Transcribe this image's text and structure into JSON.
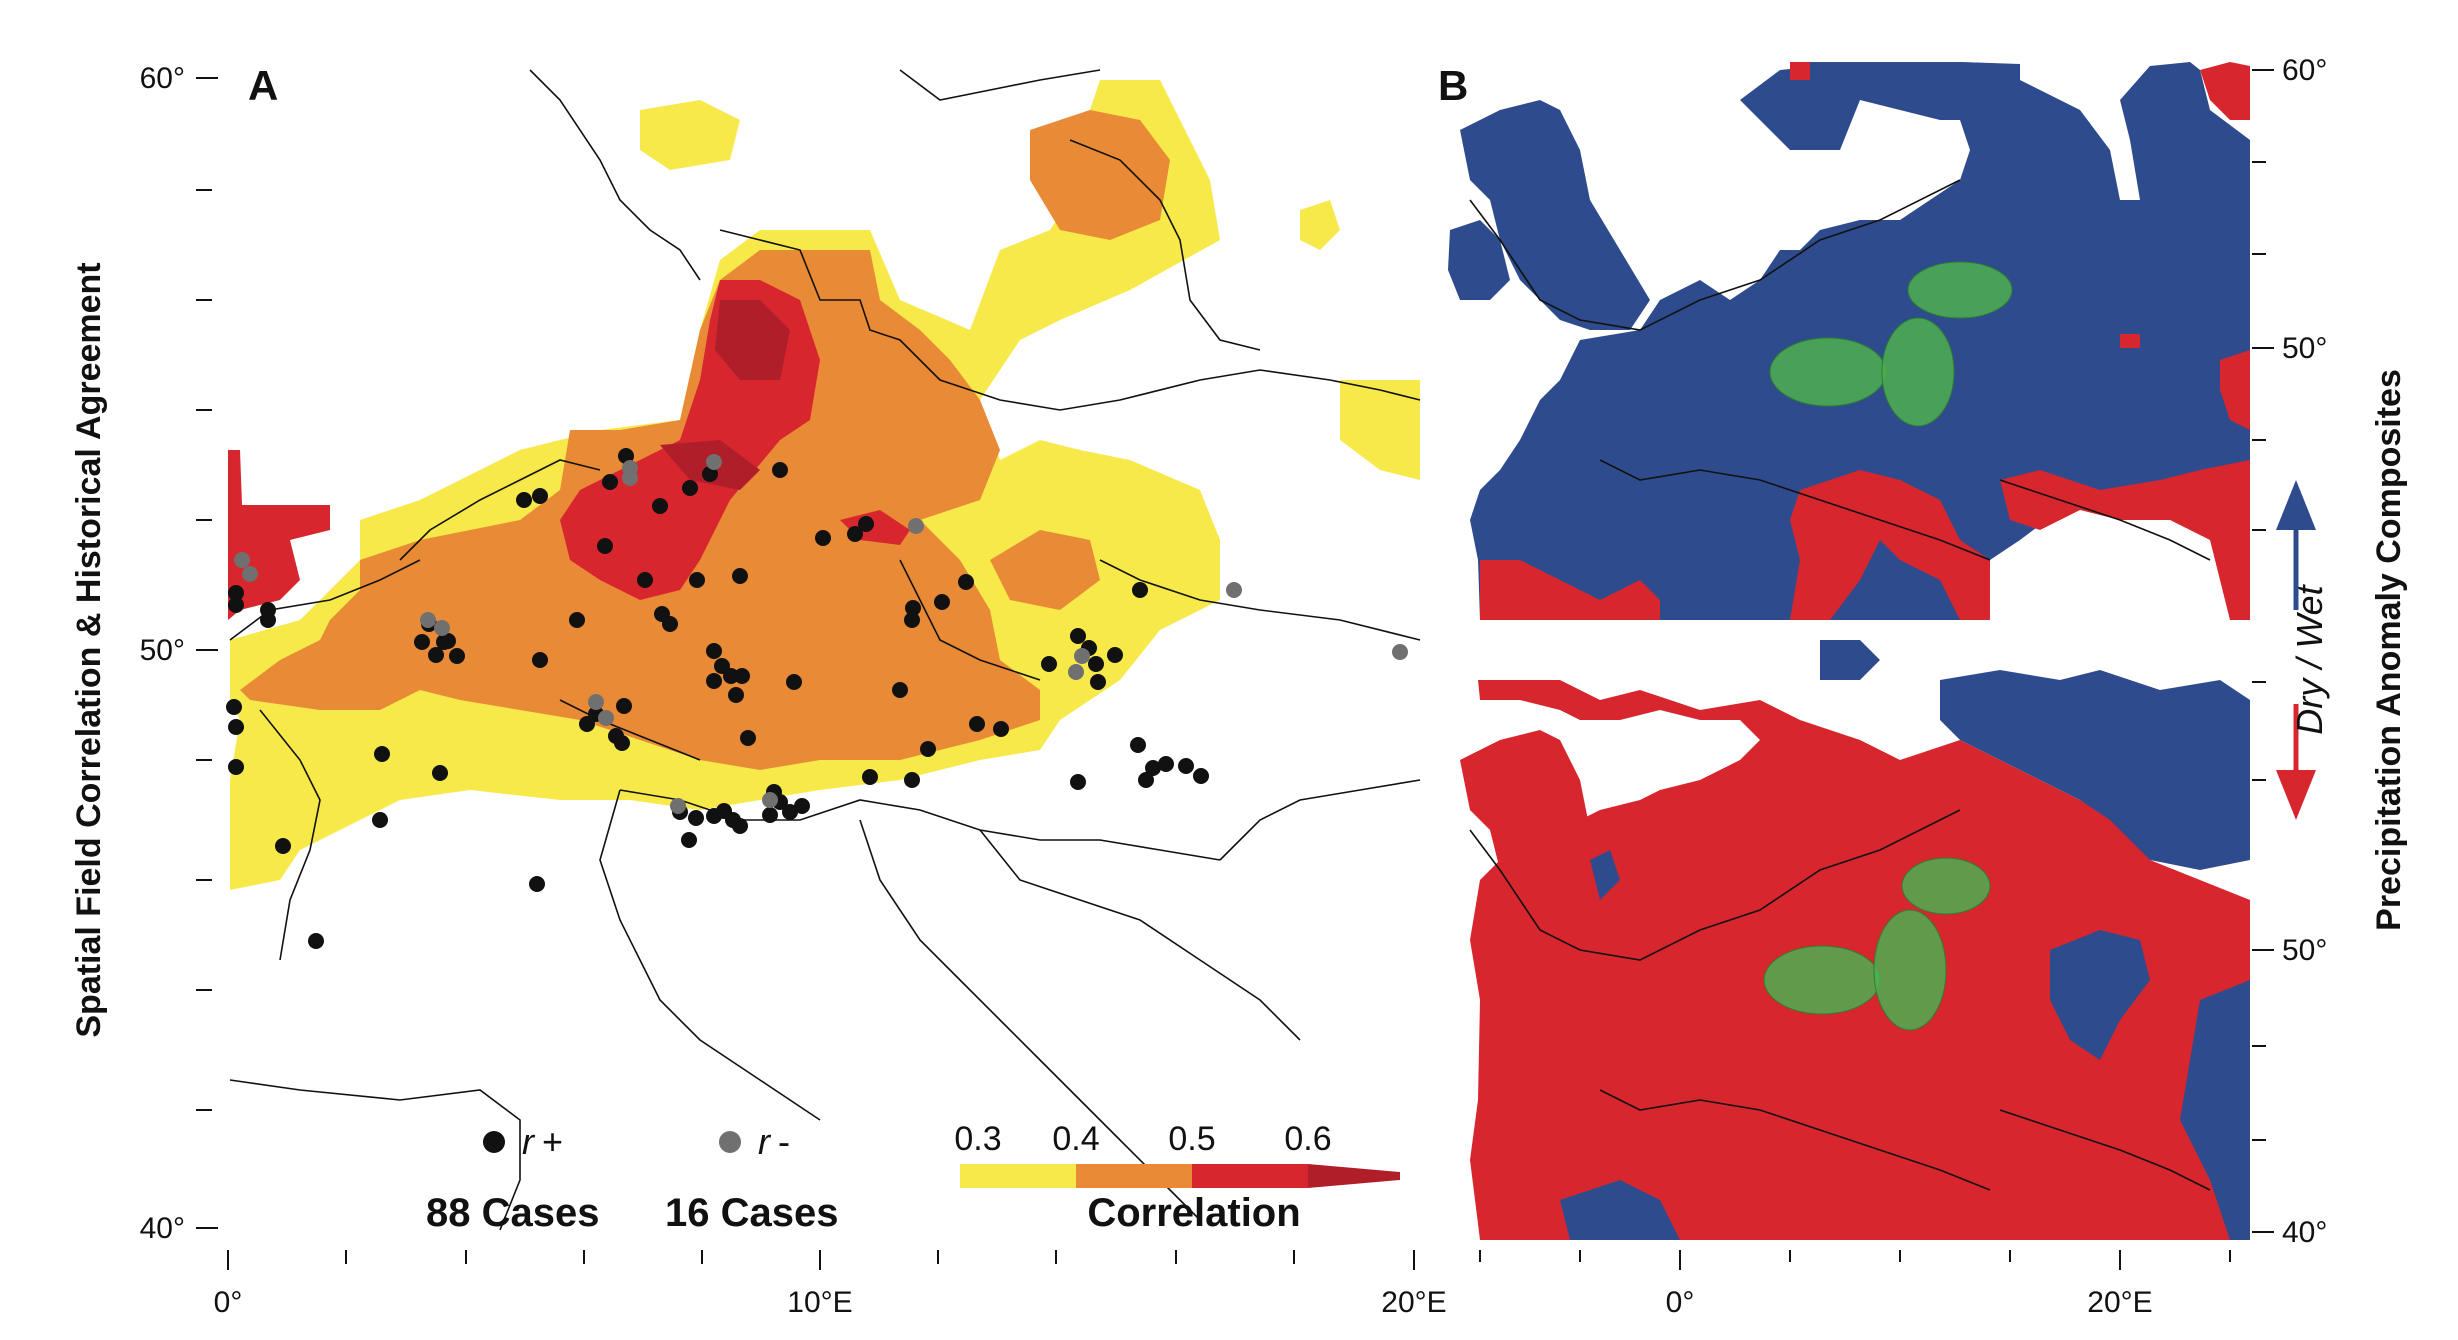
{
  "figure": {
    "left_title": "Spatial Field Correlation & Historical Agreement",
    "right_title": "Precipitation Anomaly Composites",
    "panel_a": "A",
    "panel_b": "B"
  },
  "panel_a_axes": {
    "lat_ticks": [
      "60°",
      "50°",
      "40°"
    ],
    "lon_ticks": [
      "0°",
      "10°E",
      "20°E"
    ]
  },
  "panel_b_axes": {
    "lat_ticks_top": [
      "60°",
      "50°"
    ],
    "lat_ticks_bottom": [
      "50°",
      "40°"
    ],
    "lon_ticks": [
      "0°",
      "20°E"
    ]
  },
  "legend": {
    "pos_symbol": "r",
    "pos_sign": "+",
    "neg_symbol": "r",
    "neg_sign": "-",
    "pos_count": "88 Cases",
    "neg_count": "16 Cases",
    "colorbar_title": "Correlation",
    "colorbar_ticks": [
      "0.3",
      "0.4",
      "0.5",
      "0.6"
    ]
  },
  "arrows": {
    "label_dry": "Dry",
    "label_sep": " / ",
    "label_wet": "Wet"
  },
  "colors": {
    "corr_03": "#f7e94a",
    "corr_04": "#e98a36",
    "corr_05": "#d8262e",
    "corr_06": "#b01e2a",
    "wet": "#2e4b8e",
    "dry": "#d8262e",
    "site_pos": "#111111",
    "site_neg": "#707070",
    "sites_b": "#4caf50"
  }
}
